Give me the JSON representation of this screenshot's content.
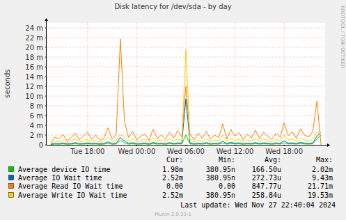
{
  "chart_data": {
    "type": "line",
    "title": "Disk latency for /dev/sda - by day",
    "y_label": "seconds",
    "watermark": "RRDTOOL / TOBI OETIKER",
    "footer": "Last update:  Wed Nov 27 22:40:04 2024",
    "subfooter": "Munin 2.0.33-1",
    "grid": true,
    "xlim": [
      13,
      47
    ],
    "xticks": [
      {
        "value": 18,
        "label": "Tue 18:00"
      },
      {
        "value": 24,
        "label": "Wed 00:00"
      },
      {
        "value": 30,
        "label": "Wed 06:00"
      },
      {
        "value": 36,
        "label": "Wed 12:00"
      },
      {
        "value": 42,
        "label": "Wed 18:00"
      }
    ],
    "ylim": [
      0,
      0.025
    ],
    "yticks": [
      0,
      {
        "value": 0.002,
        "label": "2 m"
      },
      {
        "value": 0.004,
        "label": "4 m"
      },
      {
        "value": 0.006,
        "label": "6 m"
      },
      {
        "value": 0.008,
        "label": "8 m"
      },
      {
        "value": 0.01,
        "label": "10 m"
      },
      {
        "value": 0.012,
        "label": "12 m"
      },
      {
        "value": 0.014,
        "label": "14 m"
      },
      {
        "value": 0.016,
        "label": "16 m"
      },
      {
        "value": 0.018,
        "label": "18 m"
      },
      {
        "value": 0.02,
        "label": "20 m"
      },
      {
        "value": 0.022,
        "label": "22 m"
      },
      {
        "value": 0.024,
        "label": "24 m"
      }
    ],
    "x": [
      13.5,
      14,
      14.5,
      15,
      15.5,
      16,
      16.5,
      17,
      17.5,
      18,
      18.5,
      19,
      19.5,
      20,
      20.5,
      21,
      21.5,
      22,
      22.5,
      23,
      23.5,
      24,
      24.5,
      25,
      25.5,
      26,
      26.5,
      27,
      27.5,
      28,
      28.5,
      29,
      29.5,
      30,
      30.5,
      31,
      31.5,
      32,
      32.5,
      33,
      33.5,
      34,
      34.5,
      35,
      35.5,
      36,
      36.5,
      37,
      37.5,
      38,
      38.5,
      39,
      39.5,
      40,
      40.5,
      41,
      41.5,
      42,
      42.5,
      43,
      43.5,
      44,
      44.5,
      45,
      45.5,
      46,
      46.5
    ],
    "series": [
      {
        "name": "Average device IO time",
        "color": "#00cc00",
        "values": [
          5e-05,
          0.00015,
          0.00012,
          0.0002,
          0.0001,
          0.00015,
          0.00022,
          0.00012,
          0.00015,
          0.0002,
          0.00015,
          0.00018,
          0.0001,
          0.00015,
          0.0003,
          0.00012,
          0.00018,
          0.0009,
          0.0004,
          0.00015,
          0.00022,
          0.00012,
          0.00015,
          0.0002,
          0.0001,
          0.00025,
          0.00015,
          0.00018,
          0.00012,
          0.00022,
          0.00015,
          0.0002,
          0.00018,
          0.00202,
          0.0002,
          0.00012,
          0.00018,
          0.00015,
          0.00022,
          0.00012,
          0.00018,
          0.00015,
          0.00035,
          0.00015,
          0.00025,
          0.00018,
          0.0002,
          0.00012,
          0.00018,
          0.00015,
          0.00022,
          0.00015,
          0.0002,
          0.00018,
          0.00012,
          0.0002,
          0.00015,
          0.0004,
          0.00018,
          0.0002,
          0.00015,
          0.00025,
          0.00018,
          0.00015,
          0.0002,
          0.0012,
          0.00198
        ]
      },
      {
        "name": "Average IO Wait time",
        "color": "#0066b3",
        "values": [
          0.0001,
          0.0003,
          0.00025,
          0.0004,
          0.0002,
          0.0003,
          0.00045,
          0.00025,
          0.0003,
          0.0004,
          0.0003,
          0.00035,
          0.0002,
          0.0003,
          0.0006,
          0.00025,
          0.00035,
          0.0015,
          0.0008,
          0.0003,
          0.00045,
          0.00025,
          0.0003,
          0.0004,
          0.0002,
          0.0005,
          0.0003,
          0.00035,
          0.00025,
          0.00045,
          0.0003,
          0.0004,
          0.00035,
          0.00943,
          0.0004,
          0.00025,
          0.00035,
          0.0003,
          0.00045,
          0.00025,
          0.00035,
          0.0003,
          0.0007,
          0.0003,
          0.0005,
          0.00035,
          0.0004,
          0.00025,
          0.00035,
          0.0003,
          0.00045,
          0.0003,
          0.0004,
          0.00035,
          0.00025,
          0.0004,
          0.0003,
          0.0008,
          0.00035,
          0.0004,
          0.0003,
          0.0005,
          0.00035,
          0.0003,
          0.0004,
          0.0018,
          0.00252
        ]
      },
      {
        "name": "Average Read IO Wait time",
        "color": "#ff8000",
        "values": [
          0.0003,
          0.0016,
          0.0012,
          0.0021,
          0.0008,
          0.0015,
          0.0024,
          0.001,
          0.0018,
          0.0026,
          0.0011,
          0.002,
          0.0009,
          0.0014,
          0.0035,
          0.0012,
          0.0022,
          0.02171,
          0.0048,
          0.0015,
          0.0028,
          0.001,
          0.0017,
          0.0023,
          0.0009,
          0.0032,
          0.0013,
          0.002,
          0.0011,
          0.0026,
          0.0014,
          0.0029,
          0.0016,
          0.012,
          0.0022,
          0.001,
          0.0024,
          0.0013,
          0.0028,
          0.0011,
          0.002,
          0.0015,
          0.0043,
          0.0012,
          0.0031,
          0.0018,
          0.0025,
          0.001,
          0.0022,
          0.0014,
          0.003,
          0.0012,
          0.0026,
          0.0017,
          0.0011,
          0.0024,
          0.0015,
          0.0045,
          0.0019,
          0.0027,
          0.0013,
          0.0033,
          0.002,
          0.0016,
          0.0028,
          0.009,
          0.0
        ]
      },
      {
        "name": "Average Write IO Wait time",
        "color": "#ffcc00",
        "values": [
          0.0002,
          0.0008,
          0.0006,
          0.001,
          0.0005,
          0.0009,
          0.0012,
          0.0006,
          0.0008,
          0.0011,
          0.0007,
          0.0009,
          0.0005,
          0.0008,
          0.0015,
          0.0006,
          0.001,
          0.0021,
          0.0016,
          0.0007,
          0.0012,
          0.0006,
          0.0009,
          0.0011,
          0.0005,
          0.0014,
          0.0007,
          0.001,
          0.0006,
          0.0013,
          0.0008,
          0.0012,
          0.0009,
          0.01953,
          0.0011,
          0.0006,
          0.001,
          0.0007,
          0.0013,
          0.0006,
          0.001,
          0.0008,
          0.002,
          0.0007,
          0.0014,
          0.0009,
          0.0011,
          0.0006,
          0.001,
          0.0008,
          0.0013,
          0.0007,
          0.0012,
          0.0009,
          0.0006,
          0.0011,
          0.0008,
          0.002,
          0.001,
          0.0012,
          0.0007,
          0.0014,
          0.001,
          0.0008,
          0.0012,
          0.0026,
          0.00252
        ]
      }
    ],
    "legend_table": {
      "headers": [
        "Cur:",
        "Min:",
        "Avg:",
        "Max:"
      ],
      "rows": [
        [
          "1.98m",
          "380.95n",
          "166.50u",
          "2.02m"
        ],
        [
          "2.52m",
          "380.95n",
          "272.73u",
          "9.43m"
        ],
        [
          "0.00",
          "0.00",
          "847.77u",
          "21.71m"
        ],
        [
          "2.52m",
          "380.95n",
          "258.84u",
          "19.53m"
        ]
      ]
    }
  }
}
